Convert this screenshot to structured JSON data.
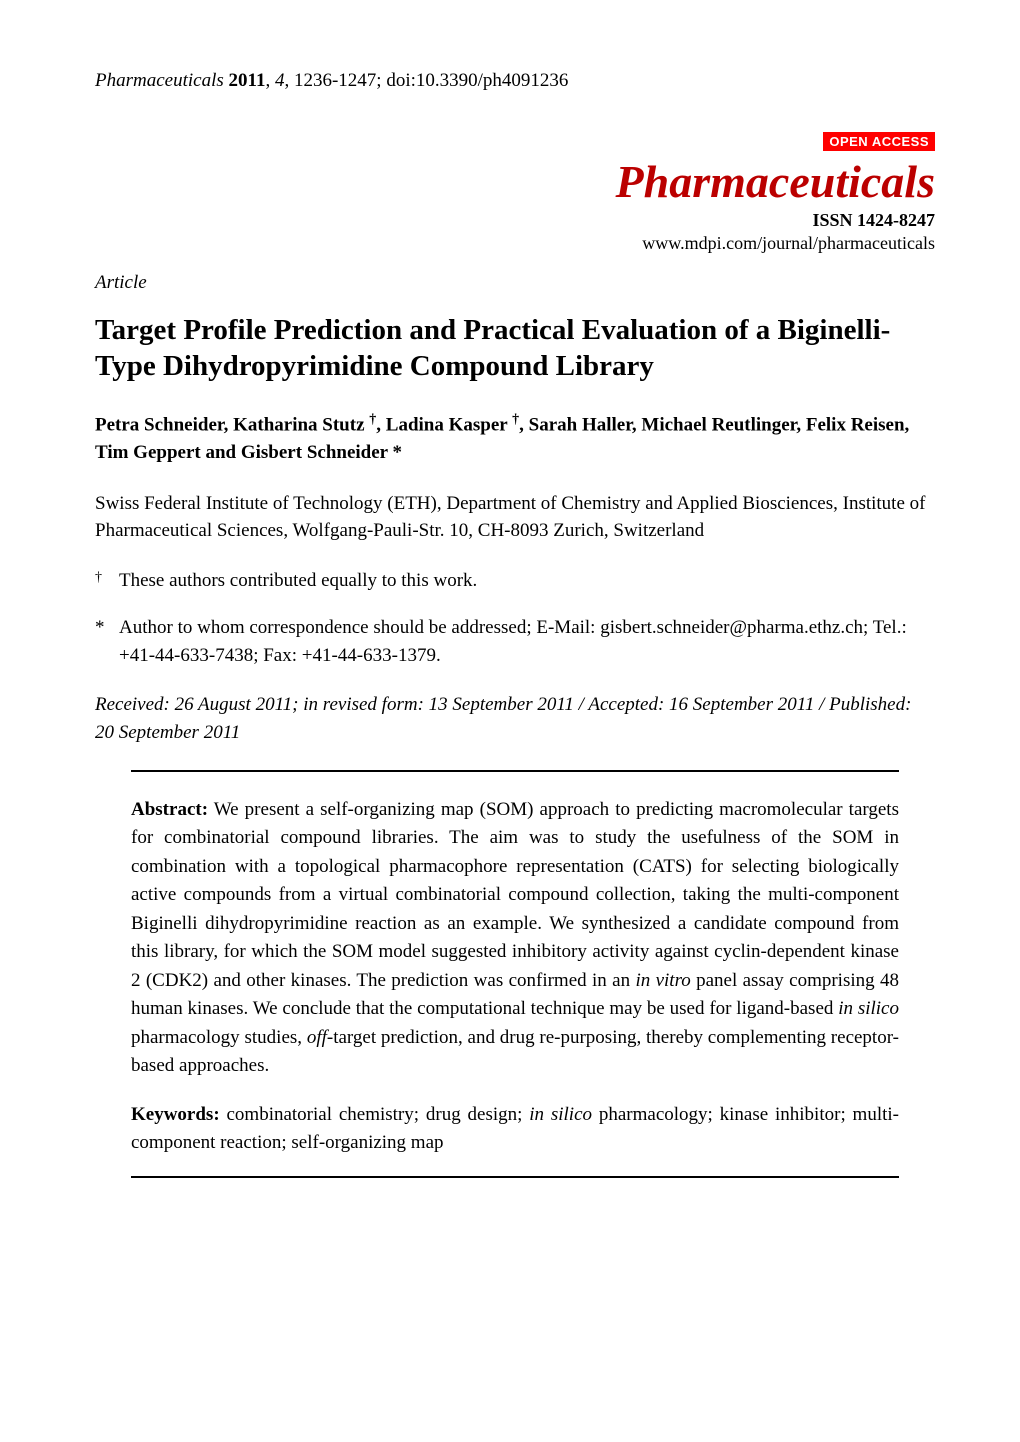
{
  "header": {
    "journal_prefix": "Pharmaceuticals",
    "year": "2011",
    "volume": "4",
    "pages": "1236-1247",
    "doi": "doi:10.3390/ph4091236"
  },
  "masthead": {
    "open_access_label": "OPEN ACCESS",
    "journal_name": "Pharmaceuticals",
    "issn": "ISSN 1424-8247",
    "url": "www.mdpi.com/journal/pharmaceuticals",
    "journal_color": "#bb0000",
    "open_access_bg": "#ff0000",
    "open_access_fg": "#ffffff"
  },
  "article_type": "Article",
  "title": "Target Profile Prediction and Practical Evaluation of a Biginelli-Type Dihydropyrimidine Compound Library",
  "authors_html": "Petra Schneider, Katharina Stutz <sup>†</sup>, Ladina Kasper <sup>†</sup>, Sarah Haller, Michael Reutlinger, Felix Reisen, Tim Geppert and Gisbert Schneider *",
  "affiliation": "Swiss Federal Institute of Technology (ETH), Department of Chemistry and Applied Biosciences, Institute of Pharmaceutical Sciences, Wolfgang-Pauli-Str. 10, CH-8093 Zurich, Switzerland",
  "footnotes": {
    "equal": {
      "marker": "†",
      "text": "These authors contributed equally to this work."
    },
    "corresponding": {
      "marker": "*",
      "text": "Author to whom correspondence should be addressed; E-Mail: gisbert.schneider@pharma.ethz.ch; Tel.: +41-44-633-7438; Fax: +41-44-633-1379."
    }
  },
  "dates": "Received: 26 August 2011; in revised form: 13 September 2011 / Accepted: 16 September 2011 / Published: 20 September 2011",
  "abstract": {
    "label": "Abstract:",
    "text_html": "We present a self-organizing map (SOM) approach to predicting macromolecular targets for combinatorial compound libraries. The aim was to study the usefulness of the SOM in combination with a topological pharmacophore representation (CATS) for selecting biologically active compounds from a virtual combinatorial compound collection, taking the multi-component Biginelli dihydropyrimidine reaction as an example. We synthesized a candidate compound from this library, for which the SOM model suggested inhibitory activity against cyclin-dependent kinase 2 (CDK2) and other kinases. The prediction was confirmed in an <em>in vitro</em> panel assay comprising 48 human kinases. We conclude that the computational technique may be used for ligand-based <em>in silico</em> pharmacology studies, <em>off</em>-target prediction, and drug re-purposing, thereby complementing receptor-based approaches."
  },
  "keywords": {
    "label": "Keywords:",
    "text_html": "combinatorial chemistry; drug design; <em>in silico</em> pharmacology; kinase inhibitor; multi-component reaction; self-organizing map"
  },
  "typography": {
    "body_fontsize_pt": 19,
    "title_fontsize_pt": 29,
    "journal_fontsize_pt": 46,
    "line_height": 1.5
  },
  "colors": {
    "text": "#000000",
    "background": "#ffffff",
    "rule": "#000000"
  }
}
